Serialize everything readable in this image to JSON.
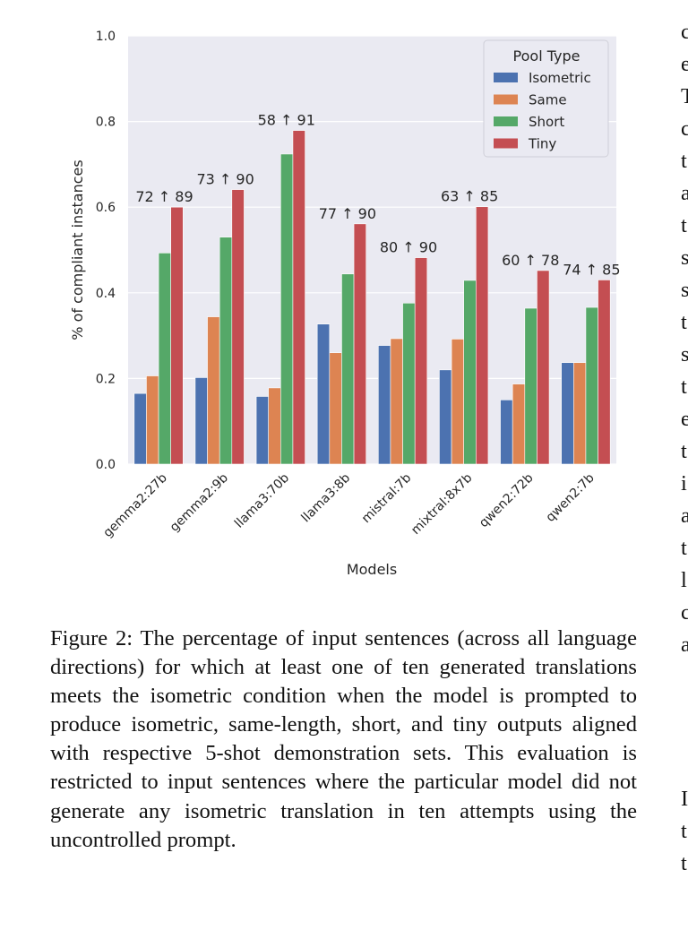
{
  "chart_data": {
    "type": "bar",
    "xlabel": "Models",
    "ylabel": "% of compliant instances",
    "ylim": [
      0,
      1.0
    ],
    "yticks": [
      "0.0",
      "0.2",
      "0.4",
      "0.6",
      "0.8",
      "1.0"
    ],
    "grid": true,
    "legend": {
      "title": "Pool Type",
      "position": "top-right"
    },
    "categories": [
      "gemma2:27b",
      "gemma2:9b",
      "llama3:70b",
      "llama3:8b",
      "mistral:7b",
      "mixtral:8x7b",
      "qwen2:72b",
      "qwen2:7b"
    ],
    "series": [
      {
        "name": "Isometric",
        "color": "#4c72b0",
        "values": [
          0.165,
          0.202,
          0.158,
          0.327,
          0.277,
          0.22,
          0.15,
          0.237
        ]
      },
      {
        "name": "Same",
        "color": "#dd8452",
        "values": [
          0.206,
          0.344,
          0.178,
          0.26,
          0.293,
          0.292,
          0.187,
          0.237
        ]
      },
      {
        "name": "Short",
        "color": "#55a868",
        "values": [
          0.493,
          0.53,
          0.724,
          0.444,
          0.376,
          0.429,
          0.364,
          0.366
        ]
      },
      {
        "name": "Tiny",
        "color": "#c44e52",
        "values": [
          0.6,
          0.641,
          0.779,
          0.561,
          0.482,
          0.601,
          0.452,
          0.43
        ]
      }
    ],
    "annotations": [
      "72 ↑ 89",
      "73 ↑ 90",
      "58 ↑ 91",
      "77 ↑ 90",
      "80 ↑ 90",
      "63 ↑ 85",
      "60 ↑ 78",
      "74 ↑ 85"
    ]
  },
  "caption": "Figure 2: The percentage of input sentences (across all language directions) for which at least one of ten generated translations meets the isometric condition when the model is prompted to produce isometric, same-length, short, and tiny outputs aligned with respective 5-shot demonstration sets. This evaluation is restricted to input sentences where the particular model did not generate any isometric translation in ten attempts using the uncontrolled prompt.",
  "right_column_fragments": [
    "c",
    "e",
    "T",
    "c",
    "t",
    "a",
    "t",
    "s",
    "s",
    "t",
    "s",
    "t",
    "e",
    "t",
    "i",
    "a",
    "t",
    "l",
    "c",
    "a",
    "I",
    "t",
    "t"
  ]
}
